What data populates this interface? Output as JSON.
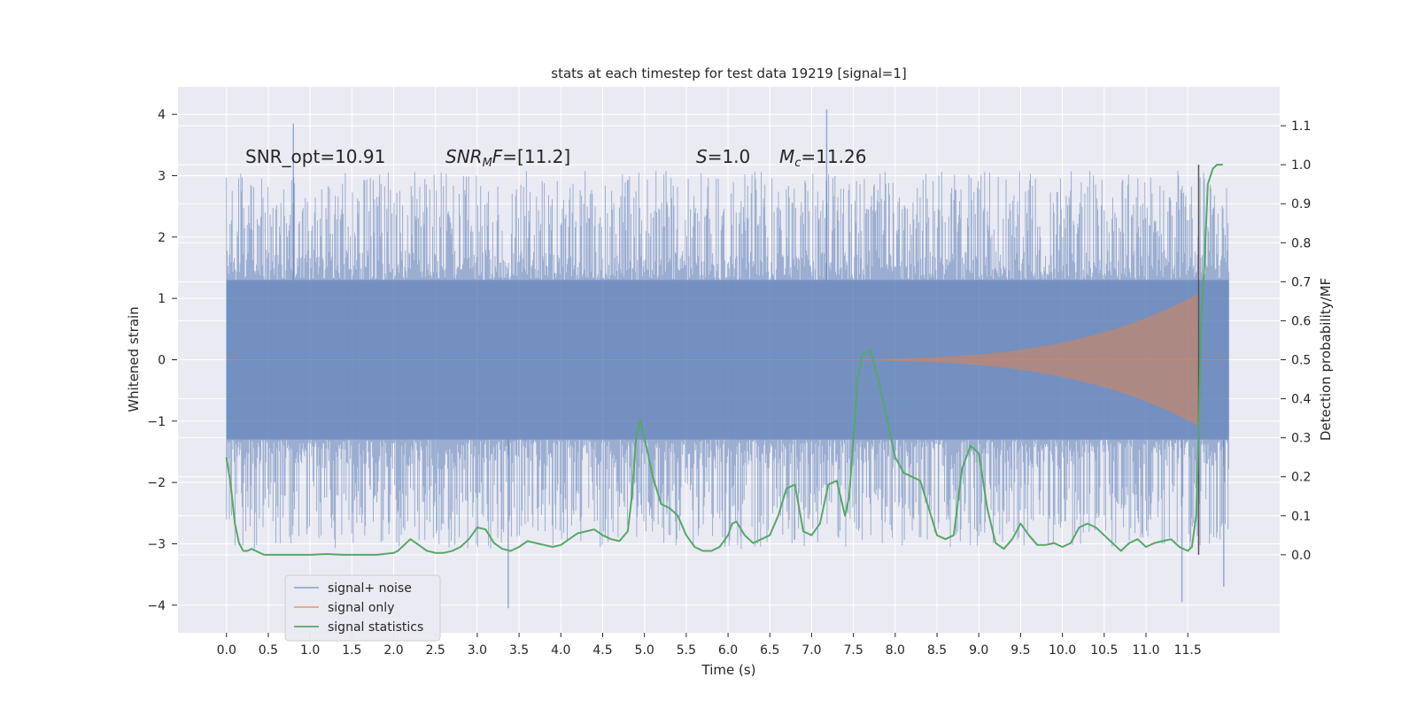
{
  "chart_data": {
    "type": "line",
    "title": "stats at each timestep for test data 19219 [signal=1]",
    "xlabel": "Time (s)",
    "ylabel": "Whitened strain",
    "y2label": "Detection probability/MF",
    "xlim": [
      -0.58,
      12.6
    ],
    "ylim": [
      -4.45,
      4.45
    ],
    "y2lim": [
      -0.2,
      1.2
    ],
    "x_ticks": [
      0.0,
      0.5,
      1.0,
      1.5,
      2.0,
      2.5,
      3.0,
      3.5,
      4.0,
      4.5,
      5.0,
      5.5,
      6.0,
      6.5,
      7.0,
      7.5,
      8.0,
      8.5,
      9.0,
      9.5,
      10.0,
      10.5,
      11.0,
      11.5
    ],
    "x_tick_labels": [
      "0.0",
      "0.5",
      "1.0",
      "1.5",
      "2.0",
      "2.5",
      "3.0",
      "3.5",
      "4.0",
      "4.5",
      "5.0",
      "5.5",
      "6.0",
      "6.5",
      "7.0",
      "7.5",
      "8.0",
      "8.5",
      "9.0",
      "9.5",
      "10.0",
      "10.5",
      "11.0",
      "11.5"
    ],
    "y_ticks": [
      4,
      3,
      2,
      1,
      0,
      -1,
      -2,
      -3,
      -4
    ],
    "y_tick_labels": [
      "4",
      "3",
      "2",
      "1",
      "0",
      "−1",
      "−2",
      "−3",
      "−4"
    ],
    "y2_ticks": [
      1.1,
      1.0,
      0.9,
      0.8,
      0.7,
      0.6,
      0.5,
      0.4,
      0.3,
      0.2,
      0.1,
      0.0
    ],
    "y2_tick_labels": [
      "1.1",
      "1.0",
      "0.9",
      "0.8",
      "0.7",
      "0.6",
      "0.5",
      "0.4",
      "0.3",
      "0.2",
      "0.1",
      "0.0"
    ],
    "annotations": [
      {
        "text": "SNR_opt=10.91",
        "x": 0.2,
        "y": 3.3
      },
      {
        "text": "SNR_MF=[11.2]",
        "x": 2.6,
        "y": 3.3
      },
      {
        "text": "S=1.0",
        "x": 5.6,
        "y": 3.3
      },
      {
        "text": "M_c=11.26",
        "x": 6.6,
        "y": 3.3
      }
    ],
    "vline": {
      "x": 11.63,
      "y2_from": 0.0,
      "y2_to": 1.0
    },
    "series": [
      {
        "name": "signal+ noise",
        "color": "#4c72b0",
        "axis": "left",
        "style": "noise band",
        "x_range": [
          0.0,
          11.99
        ],
        "dense_band": [
          -1.3,
          1.3
        ],
        "spike_envelope": [
          -3.0,
          3.0
        ],
        "extremes": [
          {
            "x": 0.8,
            "y": 3.85
          },
          {
            "x": 7.18,
            "y": 4.08
          },
          {
            "x": 3.37,
            "y": -4.05
          },
          {
            "x": 11.43,
            "y": -3.95
          },
          {
            "x": 11.93,
            "y": -3.7
          }
        ]
      },
      {
        "name": "signal only",
        "color": "#dd8452",
        "axis": "left",
        "style": "chirp",
        "start": 7.2,
        "merger": 11.63,
        "peak_amplitude": 1.0,
        "end": 11.99
      },
      {
        "name": "signal statistics",
        "color": "#55a868",
        "axis": "right",
        "x": [
          0.0,
          0.05,
          0.1,
          0.15,
          0.2,
          0.25,
          0.3,
          0.35,
          0.4,
          0.45,
          0.5,
          0.6,
          0.8,
          1.0,
          1.2,
          1.4,
          1.6,
          1.8,
          2.0,
          2.05,
          2.1,
          2.2,
          2.3,
          2.4,
          2.5,
          2.6,
          2.7,
          2.8,
          2.9,
          3.0,
          3.1,
          3.2,
          3.3,
          3.4,
          3.5,
          3.6,
          3.7,
          3.8,
          3.9,
          4.0,
          4.1,
          4.2,
          4.3,
          4.4,
          4.5,
          4.6,
          4.7,
          4.8,
          4.85,
          4.9,
          4.95,
          5.0,
          5.05,
          5.1,
          5.2,
          5.3,
          5.4,
          5.5,
          5.6,
          5.7,
          5.8,
          5.9,
          6.0,
          6.05,
          6.1,
          6.2,
          6.3,
          6.4,
          6.5,
          6.6,
          6.7,
          6.8,
          6.9,
          7.0,
          7.1,
          7.2,
          7.3,
          7.4,
          7.45,
          7.5,
          7.55,
          7.6,
          7.7,
          7.8,
          7.9,
          8.0,
          8.1,
          8.2,
          8.3,
          8.4,
          8.5,
          8.6,
          8.7,
          8.8,
          8.9,
          9.0,
          9.1,
          9.2,
          9.3,
          9.4,
          9.5,
          9.6,
          9.7,
          9.8,
          9.9,
          10.0,
          10.1,
          10.2,
          10.3,
          10.4,
          10.5,
          10.6,
          10.7,
          10.8,
          10.9,
          11.0,
          11.1,
          11.2,
          11.3,
          11.4,
          11.5,
          11.55,
          11.6,
          11.63,
          11.66,
          11.7,
          11.74,
          11.8,
          11.85,
          11.9,
          11.92
        ],
        "values": [
          0.25,
          0.18,
          0.08,
          0.03,
          0.01,
          0.01,
          0.015,
          0.01,
          0.005,
          0.0,
          0.0,
          0.0,
          0.0,
          0.0,
          0.002,
          0.0,
          0.0,
          0.0,
          0.005,
          0.01,
          0.02,
          0.04,
          0.025,
          0.01,
          0.005,
          0.005,
          0.01,
          0.02,
          0.04,
          0.07,
          0.065,
          0.03,
          0.015,
          0.01,
          0.02,
          0.035,
          0.03,
          0.025,
          0.02,
          0.025,
          0.04,
          0.055,
          0.06,
          0.065,
          0.05,
          0.04,
          0.035,
          0.06,
          0.15,
          0.3,
          0.345,
          0.3,
          0.25,
          0.2,
          0.13,
          0.12,
          0.1,
          0.05,
          0.02,
          0.01,
          0.01,
          0.02,
          0.05,
          0.08,
          0.085,
          0.05,
          0.03,
          0.04,
          0.05,
          0.1,
          0.17,
          0.18,
          0.06,
          0.05,
          0.08,
          0.18,
          0.19,
          0.1,
          0.15,
          0.3,
          0.45,
          0.51,
          0.525,
          0.45,
          0.35,
          0.25,
          0.21,
          0.2,
          0.19,
          0.12,
          0.05,
          0.04,
          0.05,
          0.22,
          0.28,
          0.26,
          0.12,
          0.03,
          0.015,
          0.04,
          0.08,
          0.05,
          0.025,
          0.025,
          0.03,
          0.02,
          0.03,
          0.07,
          0.08,
          0.07,
          0.05,
          0.03,
          0.01,
          0.03,
          0.04,
          0.02,
          0.03,
          0.035,
          0.04,
          0.02,
          0.01,
          0.02,
          0.1,
          0.3,
          0.6,
          0.75,
          0.95,
          0.99,
          1.0,
          1.0,
          1.0
        ]
      }
    ],
    "legend": {
      "position": "lower-left",
      "entries": [
        "signal+ noise",
        "signal only",
        "signal statistics"
      ]
    }
  }
}
